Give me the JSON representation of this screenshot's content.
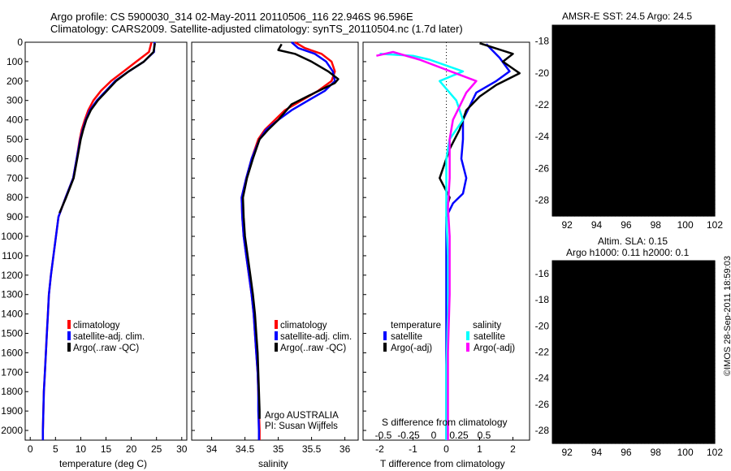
{
  "header": {
    "line1": "Argo profile: CS 5900030_314 02-May-2011 20110506_116 22.946S 96.596E",
    "line2": "Climatology: CARS2009. Satellite-adjusted climatology: synTS_20110504.nc (1.7d later)"
  },
  "credit": "©IMOS 28-Sep-2011 18:59:03",
  "colors": {
    "climatology": "#ff0000",
    "satellite": "#0000ff",
    "argo": "#000000",
    "sal_satellite": "#00ffff",
    "sal_argo": "#ff00ff"
  },
  "chart_data": [
    {
      "type": "line",
      "id": "temperature",
      "xlabel": "temperature (deg C)",
      "ylabel": "",
      "xlim": [
        -1,
        31
      ],
      "ylim": [
        2050,
        0
      ],
      "xticks": [
        0,
        5,
        10,
        15,
        20,
        25,
        30
      ],
      "yticks": [
        0,
        100,
        200,
        300,
        400,
        500,
        600,
        700,
        800,
        900,
        1000,
        1100,
        1200,
        1300,
        1400,
        1500,
        1600,
        1700,
        1800,
        1900,
        2000
      ],
      "legend": [
        "climatology",
        "satellite-adj. clim.",
        "Argo(..raw -QC)"
      ],
      "series": [
        {
          "name": "climatology",
          "color": "#ff0000",
          "points": [
            [
              24.0,
              0
            ],
            [
              23.5,
              50
            ],
            [
              21,
              100
            ],
            [
              18.5,
              150
            ],
            [
              16,
              200
            ],
            [
              14,
              250
            ],
            [
              12.5,
              300
            ],
            [
              11.5,
              350
            ],
            [
              10.8,
              400
            ],
            [
              10.2,
              450
            ],
            [
              9.8,
              500
            ],
            [
              9.2,
              600
            ],
            [
              8.5,
              700
            ],
            [
              7.0,
              800
            ],
            [
              5.6,
              900
            ],
            [
              5.1,
              1000
            ],
            [
              4.6,
              1100
            ],
            [
              4.1,
              1200
            ],
            [
              3.7,
              1300
            ],
            [
              3.5,
              1400
            ],
            [
              3.3,
              1500
            ],
            [
              3.1,
              1600
            ],
            [
              2.9,
              1700
            ],
            [
              2.7,
              1800
            ],
            [
              2.6,
              1900
            ],
            [
              2.5,
              2000
            ],
            [
              2.5,
              2050
            ]
          ]
        },
        {
          "name": "satellite-adj. clim.",
          "color": "#0000ff",
          "points": [
            [
              24.6,
              0
            ],
            [
              24.5,
              50
            ],
            [
              22.5,
              100
            ],
            [
              19.5,
              150
            ],
            [
              16.8,
              200
            ],
            [
              15,
              250
            ],
            [
              13.2,
              300
            ],
            [
              11.8,
              350
            ],
            [
              11.0,
              400
            ],
            [
              10.4,
              450
            ],
            [
              9.9,
              500
            ],
            [
              9.2,
              600
            ],
            [
              8.5,
              700
            ],
            [
              7.0,
              800
            ],
            [
              5.6,
              900
            ],
            [
              5.1,
              1000
            ],
            [
              4.6,
              1100
            ],
            [
              4.1,
              1200
            ],
            [
              3.7,
              1300
            ],
            [
              3.5,
              1400
            ],
            [
              3.3,
              1500
            ],
            [
              3.1,
              1600
            ],
            [
              2.9,
              1700
            ],
            [
              2.7,
              1800
            ],
            [
              2.6,
              1900
            ],
            [
              2.5,
              2000
            ],
            [
              2.5,
              2050
            ]
          ]
        },
        {
          "name": "Argo(..raw -QC)",
          "color": "#000000",
          "points": [
            [
              24.7,
              5
            ],
            [
              24.4,
              50
            ],
            [
              22.5,
              100
            ],
            [
              19.5,
              150
            ],
            [
              17,
              200
            ],
            [
              15.2,
              250
            ],
            [
              13.4,
              300
            ],
            [
              12,
              350
            ],
            [
              11.1,
              400
            ],
            [
              10.5,
              450
            ],
            [
              10,
              500
            ],
            [
              9.3,
              600
            ],
            [
              8.6,
              700
            ],
            [
              7.1,
              800
            ],
            [
              5.8,
              880
            ]
          ]
        }
      ]
    },
    {
      "type": "line",
      "id": "salinity",
      "xlabel": "salinity",
      "ylabel": "",
      "xlim": [
        33.7,
        36.2
      ],
      "ylim": [
        2050,
        0
      ],
      "xticks": [
        34,
        34.5,
        35,
        35.5,
        36
      ],
      "legend": [
        "climatology",
        "satellite-adj. clim.",
        "Argo(..raw -QC)"
      ],
      "annotation": [
        "Argo AUSTRALIA",
        "PI: Susan Wijffels"
      ],
      "series": [
        {
          "name": "climatology",
          "color": "#ff0000",
          "points": [
            [
              35.25,
              0
            ],
            [
              35.4,
              30
            ],
            [
              35.65,
              60
            ],
            [
              35.8,
              100
            ],
            [
              35.85,
              150
            ],
            [
              35.8,
              200
            ],
            [
              35.6,
              250
            ],
            [
              35.35,
              300
            ],
            [
              35.1,
              350
            ],
            [
              34.95,
              400
            ],
            [
              34.8,
              450
            ],
            [
              34.7,
              500
            ],
            [
              34.6,
              600
            ],
            [
              34.52,
              700
            ],
            [
              34.45,
              800
            ],
            [
              34.46,
              900
            ],
            [
              34.48,
              1000
            ],
            [
              34.52,
              1100
            ],
            [
              34.56,
              1200
            ],
            [
              34.6,
              1300
            ],
            [
              34.63,
              1400
            ],
            [
              34.65,
              1500
            ],
            [
              34.67,
              1600
            ],
            [
              34.69,
              1700
            ],
            [
              34.7,
              1800
            ],
            [
              34.71,
              1900
            ],
            [
              34.72,
              2000
            ],
            [
              34.72,
              2050
            ]
          ]
        },
        {
          "name": "satellite-adj. clim.",
          "color": "#0000ff",
          "points": [
            [
              35.2,
              0
            ],
            [
              35.3,
              30
            ],
            [
              35.55,
              60
            ],
            [
              35.72,
              100
            ],
            [
              35.82,
              150
            ],
            [
              35.85,
              200
            ],
            [
              35.7,
              250
            ],
            [
              35.45,
              300
            ],
            [
              35.2,
              350
            ],
            [
              35.0,
              400
            ],
            [
              34.82,
              450
            ],
            [
              34.72,
              500
            ],
            [
              34.6,
              600
            ],
            [
              34.52,
              700
            ],
            [
              34.45,
              800
            ],
            [
              34.46,
              900
            ],
            [
              34.48,
              1000
            ],
            [
              34.52,
              1100
            ],
            [
              34.56,
              1200
            ],
            [
              34.6,
              1300
            ],
            [
              34.63,
              1400
            ],
            [
              34.65,
              1500
            ],
            [
              34.67,
              1600
            ],
            [
              34.69,
              1700
            ],
            [
              34.7,
              1800
            ],
            [
              34.7,
              1900
            ],
            [
              34.71,
              2000
            ],
            [
              34.71,
              2050
            ]
          ]
        },
        {
          "name": "Argo(..raw -QC)",
          "color": "#000000",
          "points": [
            [
              35.05,
              10
            ],
            [
              35.0,
              40
            ],
            [
              35.25,
              60
            ],
            [
              35.5,
              100
            ],
            [
              35.75,
              150
            ],
            [
              35.9,
              190
            ],
            [
              35.85,
              210
            ],
            [
              35.55,
              260
            ],
            [
              35.2,
              320
            ],
            [
              35.0,
              400
            ],
            [
              34.85,
              450
            ],
            [
              34.72,
              500
            ],
            [
              34.62,
              600
            ],
            [
              34.53,
              700
            ],
            [
              34.47,
              800
            ],
            [
              34.48,
              900
            ],
            [
              34.5,
              1000
            ],
            [
              34.54,
              1100
            ],
            [
              34.58,
              1200
            ],
            [
              34.62,
              1300
            ],
            [
              34.65,
              1400
            ],
            [
              34.67,
              1500
            ],
            [
              34.69,
              1600
            ],
            [
              34.7,
              1700
            ],
            [
              34.71,
              1800
            ],
            [
              34.72,
              1900
            ],
            [
              34.72,
              1940
            ]
          ]
        }
      ]
    },
    {
      "type": "line",
      "id": "differences",
      "xlabel": "T difference from climatology",
      "xlabel2": "S difference from climatology",
      "xlim": [
        -2.5,
        2.5
      ],
      "ylim": [
        2050,
        0
      ],
      "xticks": [
        -2,
        -1,
        0,
        1,
        2
      ],
      "xticks_s": [
        "-0.5",
        "-0.25",
        "0",
        "0.25",
        "0.5"
      ],
      "legend_groups": [
        "temperature",
        "salinity"
      ],
      "legend": [
        "satellite",
        "Argo(-adj)",
        "satellite",
        "Argo(-adj)"
      ],
      "series": [
        {
          "name": "satellite",
          "group": "temperature",
          "color": "#0000ff",
          "points": [
            [
              1.2,
              10
            ],
            [
              1.6,
              80
            ],
            [
              1.9,
              150
            ],
            [
              1.5,
              200
            ],
            [
              0.9,
              260
            ],
            [
              0.7,
              330
            ],
            [
              0.5,
              400
            ],
            [
              0.5,
              500
            ],
            [
              0.45,
              600
            ],
            [
              0.6,
              700
            ],
            [
              0.5,
              780
            ],
            [
              0.2,
              830
            ],
            [
              0,
              900
            ],
            [
              0,
              1200
            ],
            [
              0,
              1500
            ],
            [
              0,
              2050
            ]
          ]
        },
        {
          "name": "Argo(-adj)",
          "group": "temperature",
          "color": "#000000",
          "points": [
            [
              1.0,
              5
            ],
            [
              2.0,
              60
            ],
            [
              1.7,
              100
            ],
            [
              2.2,
              160
            ],
            [
              1.5,
              220
            ],
            [
              1.0,
              280
            ],
            [
              0.6,
              350
            ],
            [
              0.4,
              450
            ],
            [
              0.1,
              550
            ],
            [
              -0.2,
              700
            ],
            [
              0.1,
              800
            ],
            [
              0,
              860
            ]
          ]
        },
        {
          "name": "satellite",
          "group": "salinity",
          "color": "#00ffff",
          "points": [
            [
              -2.0,
              60
            ],
            [
              -1.0,
              70
            ],
            [
              -0.5,
              90
            ],
            [
              0.5,
              150
            ],
            [
              -0.2,
              200
            ],
            [
              0.3,
              300
            ],
            [
              0.5,
              400
            ],
            [
              0.1,
              500
            ],
            [
              0,
              600
            ],
            [
              0,
              700
            ],
            [
              0,
              800
            ],
            [
              0,
              900
            ],
            [
              0.05,
              1100
            ],
            [
              0.05,
              1400
            ],
            [
              0.0,
              1700
            ],
            [
              0.0,
              2050
            ]
          ]
        },
        {
          "name": "Argo(-adj)",
          "group": "salinity",
          "color": "#ff00ff",
          "points": [
            [
              -2.1,
              70
            ],
            [
              -1.6,
              50
            ],
            [
              -0.8,
              90
            ],
            [
              0.9,
              200
            ],
            [
              0.6,
              260
            ],
            [
              0.4,
              330
            ],
            [
              0.2,
              400
            ],
            [
              0.1,
              500
            ],
            [
              0.1,
              700
            ],
            [
              0.05,
              850
            ],
            [
              0.1,
              1000
            ],
            [
              0.1,
              1300
            ],
            [
              0.05,
              1600
            ],
            [
              0.05,
              1900
            ],
            [
              0.05,
              2050
            ]
          ]
        }
      ]
    },
    {
      "type": "heatmap",
      "id": "sst-map",
      "title": "AMSR-E SST: 24.5 Argo: 24.5",
      "xlim": [
        91,
        102
      ],
      "ylim": [
        -29,
        -17
      ],
      "xticks": [
        92,
        94,
        96,
        98,
        100,
        102
      ],
      "yticks": [
        -18,
        -20,
        -22,
        -24,
        -26,
        -28
      ],
      "marker": {
        "lon": 96.596,
        "lat": -22.946
      }
    },
    {
      "type": "heatmap",
      "id": "sla-map",
      "title": "Altim. SLA: 0.15",
      "subtitle": "Argo h1000: 0.11 h2000: 0.1",
      "xlim": [
        91,
        102
      ],
      "ylim": [
        -29,
        -15
      ],
      "xticks": [
        92,
        94,
        96,
        98,
        100,
        102
      ],
      "yticks": [
        -16,
        -18,
        -20,
        -22,
        -24,
        -26,
        -28
      ],
      "marker": {
        "lon": 96.596,
        "lat": -22.946
      }
    }
  ]
}
